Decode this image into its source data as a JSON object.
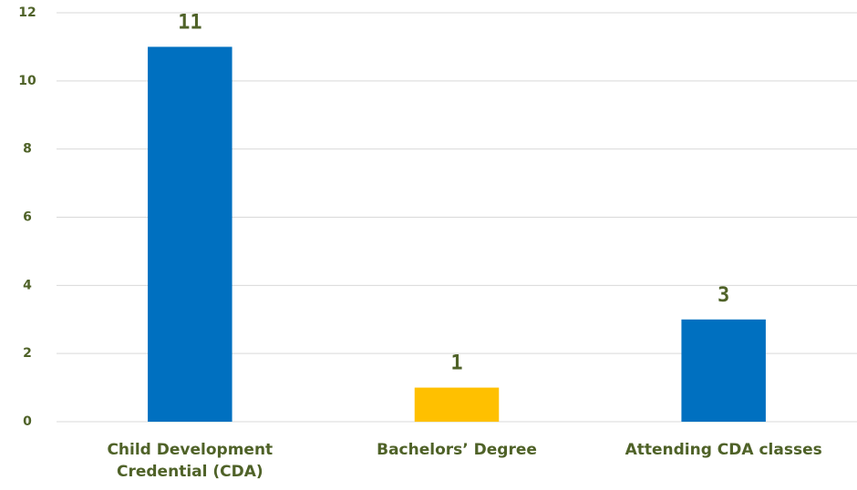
{
  "chart_data": {
    "type": "bar",
    "categories": [
      "Child Development Credential (CDA)",
      "Bachelors’ Degree",
      "Attending CDA classes"
    ],
    "values": [
      11,
      1,
      3
    ],
    "colors": [
      "#0070c0",
      "#ffc000",
      "#0070c0"
    ],
    "ylim": [
      0,
      12
    ],
    "yticks": [
      0,
      2,
      4,
      6,
      8,
      10,
      12
    ],
    "grid": true
  }
}
